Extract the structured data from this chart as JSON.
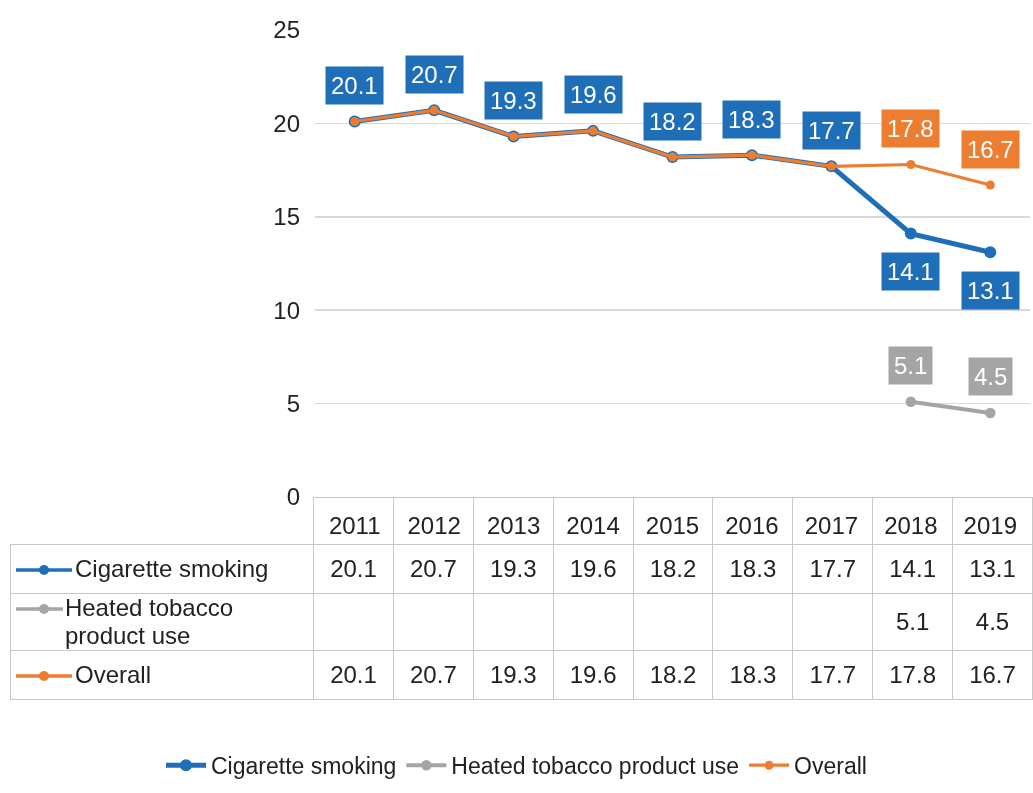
{
  "chart_data": {
    "type": "line",
    "categories": [
      "2011",
      "2012",
      "2013",
      "2014",
      "2015",
      "2016",
      "2017",
      "2018",
      "2019"
    ],
    "series": [
      {
        "name": "Cigarette smoking",
        "color": "#1f6fb8",
        "values": [
          20.1,
          20.7,
          19.3,
          19.6,
          18.2,
          18.3,
          17.7,
          14.1,
          13.1
        ]
      },
      {
        "name": "Heated tobacco product use",
        "color": "#a5a5a5",
        "values": [
          null,
          null,
          null,
          null,
          null,
          null,
          null,
          5.1,
          4.5
        ]
      },
      {
        "name": "Overall",
        "color": "#ed7d31",
        "values": [
          20.1,
          20.7,
          19.3,
          19.6,
          18.2,
          18.3,
          17.7,
          17.8,
          16.7
        ]
      }
    ],
    "ylim": [
      0,
      25
    ],
    "yticks": [
      0,
      5,
      10,
      15,
      20,
      25
    ],
    "annotations": [
      {
        "text": "20.1",
        "x": "2011",
        "y": 20.1
      },
      {
        "text": "20.7",
        "x": "2012",
        "y": 20.7
      },
      {
        "text": "19.3",
        "x": "2013",
        "y": 19.3
      },
      {
        "text": "19.6",
        "x": "2014",
        "y": 19.6
      },
      {
        "text": "18.2",
        "x": "2015",
        "y": 18.2
      },
      {
        "text": "18.3",
        "x": "2016",
        "y": 18.3
      },
      {
        "text": "17.7",
        "x": "2017",
        "y": 17.7
      },
      {
        "text": "17.8",
        "x": "2018",
        "y": 17.8
      },
      {
        "text": "16.7",
        "x": "2019",
        "y": 16.7
      },
      {
        "text": "14.1",
        "x": "2018",
        "y": 14.1
      },
      {
        "text": "13.1",
        "x": "2019",
        "y": 13.1
      },
      {
        "text": "5.1",
        "x": "2018",
        "y": 5.1
      },
      {
        "text": "4.5",
        "x": "2019",
        "y": 4.5
      }
    ],
    "grid": "y",
    "legend": "bottom",
    "marker": "circle",
    "data_labels": true
  }
}
